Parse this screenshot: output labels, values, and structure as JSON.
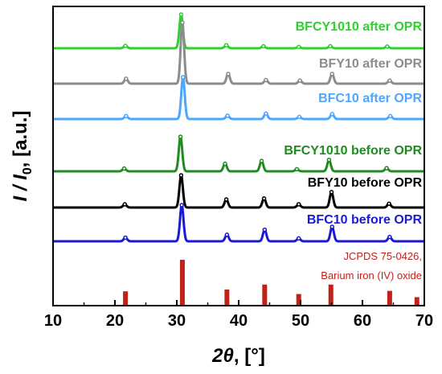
{
  "chart_data": {
    "type": "line",
    "x_axis": {
      "range": [
        10,
        70
      ],
      "ticks": [
        10,
        20,
        30,
        40,
        50,
        60,
        70
      ],
      "title_symbol": "2θ",
      "title_unit": ", [°]"
    },
    "y_axis": {
      "title_main": "I / I",
      "title_sub": "0",
      "title_unit": ", [a.u.]",
      "ticks_shown": false
    },
    "series": [
      {
        "name": "BFCY1010 after OPR",
        "color": "#2fd12f",
        "peaks": [
          {
            "x": 21.7,
            "h": 0.07
          },
          {
            "x": 30.7,
            "h": 1.0
          },
          {
            "x": 38.0,
            "h": 0.09
          },
          {
            "x": 44.0,
            "h": 0.06
          },
          {
            "x": 49.7,
            "h": 0.04
          },
          {
            "x": 54.8,
            "h": 0.06
          },
          {
            "x": 64.0,
            "h": 0.05
          }
        ]
      },
      {
        "name": "BFY10 after OPR",
        "color": "#8c8c8c",
        "peaks": [
          {
            "x": 21.8,
            "h": 0.08
          },
          {
            "x": 30.9,
            "h": 1.0
          },
          {
            "x": 38.3,
            "h": 0.16
          },
          {
            "x": 44.4,
            "h": 0.06
          },
          {
            "x": 49.9,
            "h": 0.05
          },
          {
            "x": 55.1,
            "h": 0.16
          },
          {
            "x": 64.4,
            "h": 0.05
          }
        ]
      },
      {
        "name": "BFC10 after OPR",
        "color": "#4da6ff",
        "peaks": [
          {
            "x": 21.8,
            "h": 0.07
          },
          {
            "x": 31.0,
            "h": 1.0
          },
          {
            "x": 38.2,
            "h": 0.08
          },
          {
            "x": 44.4,
            "h": 0.13
          },
          {
            "x": 49.8,
            "h": 0.05
          },
          {
            "x": 55.1,
            "h": 0.12
          },
          {
            "x": 64.5,
            "h": 0.07
          }
        ]
      },
      {
        "name": "BFCY1010 before OPR",
        "color": "#1e8c1e",
        "peaks": [
          {
            "x": 21.5,
            "h": 0.08
          },
          {
            "x": 30.6,
            "h": 1.0
          },
          {
            "x": 37.8,
            "h": 0.22
          },
          {
            "x": 43.7,
            "h": 0.3
          },
          {
            "x": 49.4,
            "h": 0.06
          },
          {
            "x": 54.6,
            "h": 0.33
          },
          {
            "x": 63.9,
            "h": 0.09
          }
        ]
      },
      {
        "name": "BFY10 before OPR",
        "color": "#000000",
        "peaks": [
          {
            "x": 21.6,
            "h": 0.1
          },
          {
            "x": 30.7,
            "h": 1.0
          },
          {
            "x": 38.0,
            "h": 0.25
          },
          {
            "x": 44.1,
            "h": 0.28
          },
          {
            "x": 49.7,
            "h": 0.1
          },
          {
            "x": 55.0,
            "h": 0.48
          },
          {
            "x": 64.3,
            "h": 0.12
          }
        ]
      },
      {
        "name": "BFC10 before OPR",
        "color": "#1a1ad6",
        "peaks": [
          {
            "x": 21.7,
            "h": 0.1
          },
          {
            "x": 30.8,
            "h": 1.0
          },
          {
            "x": 38.1,
            "h": 0.18
          },
          {
            "x": 44.2,
            "h": 0.32
          },
          {
            "x": 49.7,
            "h": 0.08
          },
          {
            "x": 55.1,
            "h": 0.4
          },
          {
            "x": 64.4,
            "h": 0.12
          }
        ]
      }
    ],
    "reference": {
      "name_line1": "JCPDS 75-0426,",
      "name_line2": "Barium iron (IV) oxide",
      "color": "#c0221b",
      "bars": [
        {
          "x": 21.7,
          "h": 0.3
        },
        {
          "x": 30.9,
          "h": 1.0
        },
        {
          "x": 38.1,
          "h": 0.34
        },
        {
          "x": 44.2,
          "h": 0.45
        },
        {
          "x": 49.7,
          "h": 0.24
        },
        {
          "x": 54.9,
          "h": 0.45
        },
        {
          "x": 64.4,
          "h": 0.31
        },
        {
          "x": 68.8,
          "h": 0.17
        }
      ]
    }
  }
}
